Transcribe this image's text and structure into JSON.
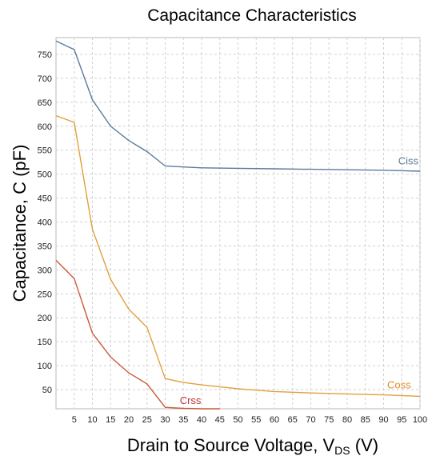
{
  "chart_data": {
    "type": "line",
    "title": "Capacitance Characteristics",
    "xlabel": {
      "main": "Drain to Source Voltage, V",
      "sub": "DS",
      "unit": " (V)"
    },
    "ylabel": "Capacitance, C (pF)",
    "xlim": [
      0,
      100
    ],
    "ylim": [
      10,
      785
    ],
    "x_ticks": [
      5,
      10,
      15,
      20,
      25,
      30,
      35,
      40,
      45,
      50,
      55,
      60,
      65,
      70,
      75,
      80,
      85,
      90,
      95,
      100
    ],
    "y_ticks": [
      50,
      100,
      150,
      200,
      250,
      300,
      350,
      400,
      450,
      500,
      550,
      600,
      650,
      700,
      750
    ],
    "grid": true,
    "series": [
      {
        "name": "Ciss",
        "color": "#5b7a9d",
        "x": [
          0,
          5,
          10,
          15,
          20,
          25,
          30,
          35,
          40,
          50,
          60,
          70,
          80,
          90,
          100
        ],
        "y": [
          778,
          760,
          655,
          600,
          570,
          547,
          517,
          515,
          513,
          512,
          511,
          510,
          509,
          508,
          506
        ]
      },
      {
        "name": "Coss",
        "color": "#e0a03a",
        "x": [
          0,
          5,
          10,
          15,
          20,
          25,
          30,
          35,
          40,
          50,
          60,
          70,
          80,
          90,
          100
        ],
        "y": [
          622,
          608,
          385,
          280,
          218,
          180,
          73,
          65,
          60,
          52,
          46,
          43,
          41,
          39,
          36
        ]
      },
      {
        "name": "Crss",
        "color": "#c95a3a",
        "x": [
          0,
          5,
          10,
          15,
          20,
          25,
          30,
          35,
          40,
          45
        ],
        "y": [
          320,
          282,
          168,
          118,
          85,
          62,
          13,
          11,
          10,
          10
        ]
      }
    ],
    "series_labels": [
      {
        "text": "Ciss",
        "color": "#5b7a9d",
        "at_x": 94,
        "at_y": 520
      },
      {
        "text": "Coss",
        "color": "#e08a2a",
        "at_x": 91,
        "at_y": 53
      },
      {
        "text": "Crss",
        "color": "#c03030",
        "at_x": 34,
        "at_y": 20
      }
    ]
  }
}
